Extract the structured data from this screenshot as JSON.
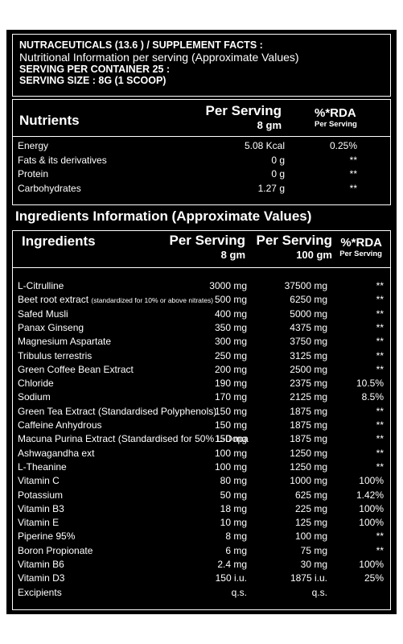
{
  "header": {
    "line1": "NUTRACEUTICALS (13.6 ) / SUPPLEMENT FACTS :",
    "line2": "Nutritional Information per serving (Approximate Values)",
    "line3": "SERVING PER CONTAINER 25 :",
    "line4": "SERVING SIZE : 8G (1 SCOOP)"
  },
  "nutrients": {
    "col_name": "Nutrients",
    "col_serving": "Per Serving",
    "col_serving_sub": "8 gm",
    "col_rda": "%*RDA",
    "col_rda_sub": "Per Serving",
    "rows": [
      {
        "name": "Energy",
        "value": "5.08 Kcal",
        "rda": "0.25%"
      },
      {
        "name": "Fats & its derivatives",
        "value": "0 g",
        "rda": "**"
      },
      {
        "name": "Protein",
        "value": "0 g",
        "rda": "**"
      },
      {
        "name": "Carbohydrates",
        "value": "1.27 g",
        "rda": "**"
      }
    ]
  },
  "ingredients": {
    "section_title": "Ingredients Information (Approximate Values)",
    "col_name": "Ingredients",
    "col_8": "Per Serving",
    "col_8_sub": "8 gm",
    "col_100": "Per Serving",
    "col_100_sub": "100 gm",
    "col_rda": "%*RDA",
    "col_rda_sub": "Per Serving",
    "rows": [
      {
        "name": "L-Citrulline",
        "note": "",
        "v8": "3000 mg",
        "v100": "37500 mg",
        "rda": "**"
      },
      {
        "name": "Beet root extract",
        "note": "(standardized for 10% or above nitrates)",
        "v8": "500 mg",
        "v100": "6250 mg",
        "rda": "**"
      },
      {
        "name": "Safed Musli",
        "note": "",
        "v8": "400 mg",
        "v100": "5000 mg",
        "rda": "**"
      },
      {
        "name": "Panax Ginseng",
        "note": "",
        "v8": "350 mg",
        "v100": "4375 mg",
        "rda": "**"
      },
      {
        "name": "Magnesium Aspartate",
        "note": "",
        "v8": "300 mg",
        "v100": "3750 mg",
        "rda": "**"
      },
      {
        "name": "Tribulus terrestris",
        "note": "",
        "v8": "250 mg",
        "v100": "3125 mg",
        "rda": "**"
      },
      {
        "name": "Green Coffee Bean Extract",
        "note": "",
        "v8": "200 mg",
        "v100": "2500 mg",
        "rda": "**"
      },
      {
        "name": "Chloride",
        "note": "",
        "v8": "190 mg",
        "v100": "2375 mg",
        "rda": "10.5%"
      },
      {
        "name": "Sodium",
        "note": "",
        "v8": "170 mg",
        "v100": "2125 mg",
        "rda": "8.5%"
      },
      {
        "name": "Green Tea Extract (Standardised Polyphenols)",
        "note": "",
        "v8": "150 mg",
        "v100": "1875 mg",
        "rda": "**"
      },
      {
        "name": "Caffeine Anhydrous",
        "note": "",
        "v8": "150 mg",
        "v100": "1875 mg",
        "rda": "**"
      },
      {
        "name": "Macuna Purina Extract (Standardised for 50% L-Dopa",
        "note": "",
        "v8": "150 mg",
        "v100": "1875 mg",
        "rda": "**"
      },
      {
        "name": "Ashwagandha ext",
        "note": "",
        "v8": "100 mg",
        "v100": "1250 mg",
        "rda": "**"
      },
      {
        "name": "L-Theanine",
        "note": "",
        "v8": "100 mg",
        "v100": "1250 mg",
        "rda": "**"
      },
      {
        "name": "Vitamin C",
        "note": "",
        "v8": "80 mg",
        "v100": "1000 mg",
        "rda": "100%"
      },
      {
        "name": "Potassium",
        "note": "",
        "v8": "50 mg",
        "v100": "625 mg",
        "rda": "1.42%"
      },
      {
        "name": "Vitamin B3",
        "note": "",
        "v8": "18 mg",
        "v100": "225 mg",
        "rda": "100%"
      },
      {
        "name": "Vitamin E",
        "note": "",
        "v8": "10 mg",
        "v100": "125 mg",
        "rda": "100%"
      },
      {
        "name": "Piperine 95%",
        "note": "",
        "v8": "8 mg",
        "v100": "100 mg",
        "rda": "**"
      },
      {
        "name": "Boron Propionate",
        "note": "",
        "v8": "6 mg",
        "v100": "75 mg",
        "rda": "**"
      },
      {
        "name": "Vitamin B6",
        "note": "",
        "v8": "2.4 mg",
        "v100": "30 mg",
        "rda": "100%"
      },
      {
        "name": "Vitamin D3",
        "note": "",
        "v8": "150 i.u.",
        "v100": "1875 i.u.",
        "rda": "25%"
      },
      {
        "name": "Excipients",
        "note": "",
        "v8": "q.s.",
        "v100": "q.s.",
        "rda": ""
      }
    ]
  }
}
